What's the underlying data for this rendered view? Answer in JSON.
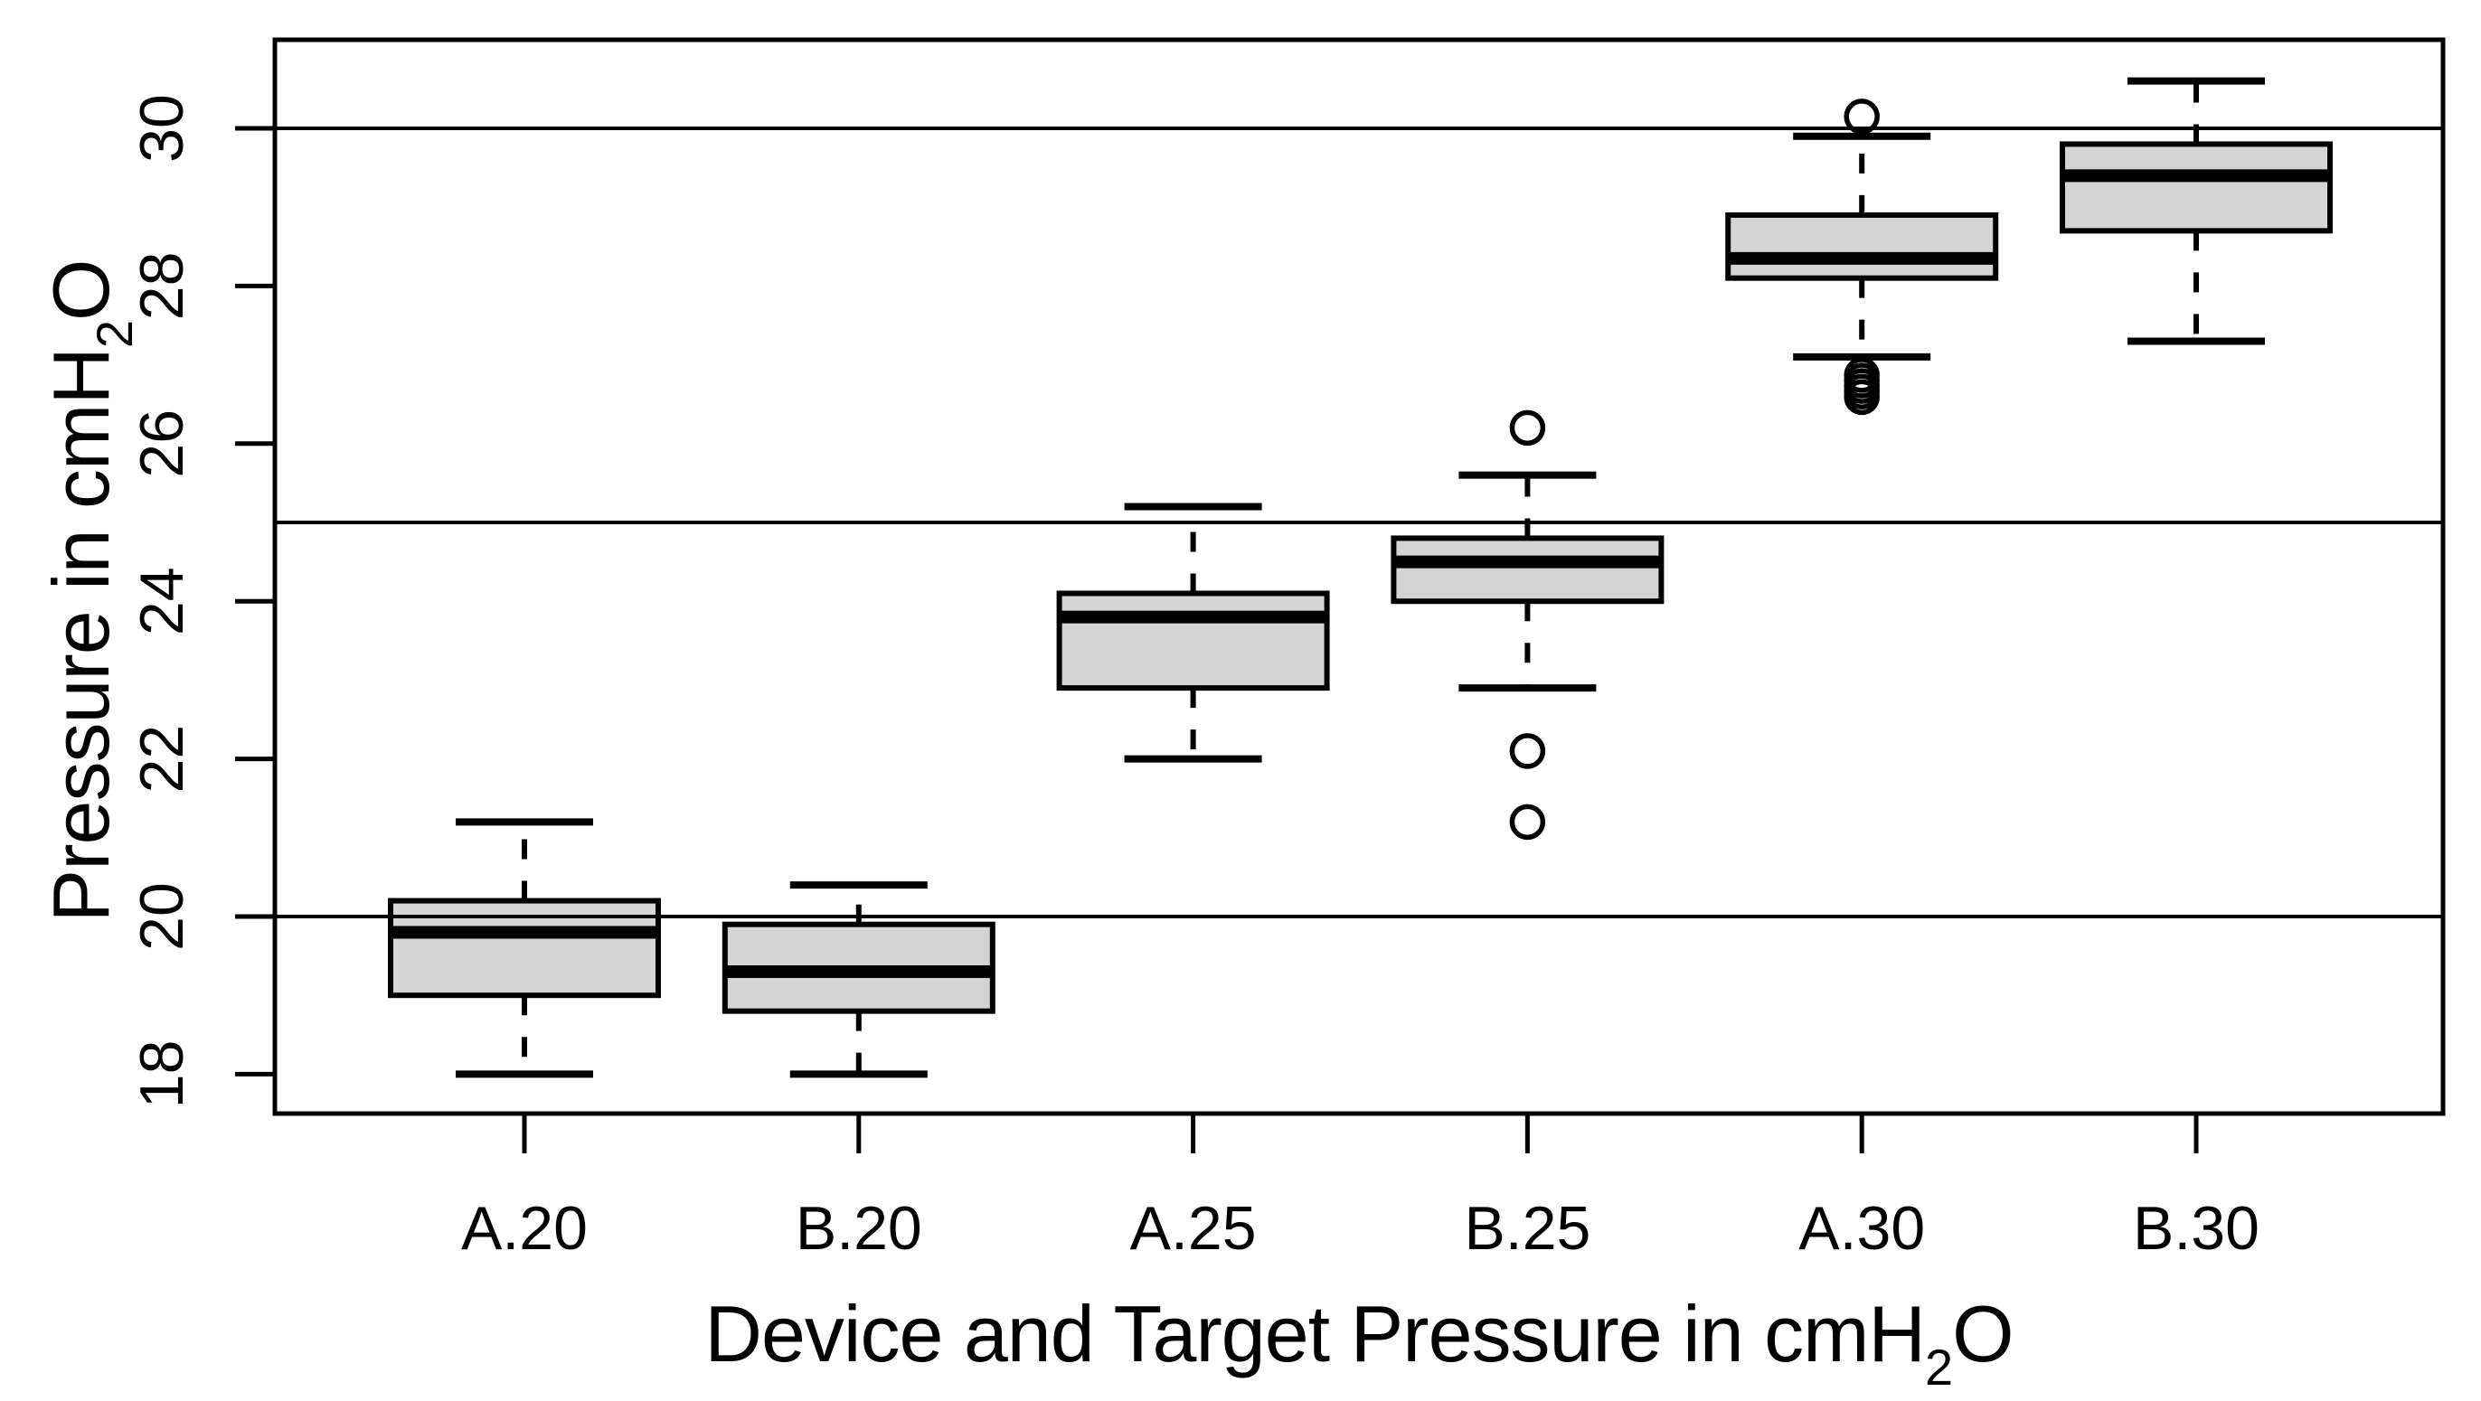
{
  "figure": {
    "description": "Boxplot figure comparing measured airway pressure for two devices (A, B) at three target pressures (20, 25, 30 cmH2O)",
    "background_color": "#ffffff",
    "foreground_color": "#000000"
  },
  "chart_data": {
    "type": "boxplot",
    "title": "",
    "xlabel": "Device and Target Pressure in cmH2O",
    "ylabel": "Pressure in cmH2O",
    "xlabel_parts": [
      {
        "t": "Device and Target Pressure in cmH",
        "sub": false
      },
      {
        "t": "2",
        "sub": true
      },
      {
        "t": "O",
        "sub": false
      }
    ],
    "ylabel_parts": [
      {
        "t": "Pressure in cmH",
        "sub": false
      },
      {
        "t": "2",
        "sub": true
      },
      {
        "t": "O",
        "sub": false
      }
    ],
    "categories": [
      "A.20",
      "B.20",
      "A.25",
      "B.25",
      "A.30",
      "B.30"
    ],
    "y_ticks": [
      18,
      20,
      22,
      24,
      26,
      28,
      30
    ],
    "ylim": [
      17.5,
      31.1
    ],
    "reference_lines": [
      20,
      25,
      30
    ],
    "grid": "horizontal reference lines at target pressures only",
    "legend": null,
    "box_fill": "#d4d4d4",
    "line_color": "#000000",
    "boxes": [
      {
        "category": "A.20",
        "whisker_low": 18.0,
        "q1": 19.0,
        "median": 19.8,
        "q3": 20.2,
        "whisker_high": 21.2,
        "outliers": []
      },
      {
        "category": "B.20",
        "whisker_low": 18.0,
        "q1": 18.8,
        "median": 19.3,
        "q3": 19.9,
        "whisker_high": 20.4,
        "outliers": []
      },
      {
        "category": "A.25",
        "whisker_low": 22.0,
        "q1": 22.9,
        "median": 23.8,
        "q3": 24.1,
        "whisker_high": 25.2,
        "outliers": []
      },
      {
        "category": "B.25",
        "whisker_low": 22.9,
        "q1": 24.0,
        "median": 24.5,
        "q3": 24.8,
        "whisker_high": 25.6,
        "outliers": [
          26.2,
          22.1,
          21.2
        ]
      },
      {
        "category": "A.30",
        "whisker_low": 27.1,
        "q1": 28.1,
        "median": 28.35,
        "q3": 28.9,
        "whisker_high": 29.9,
        "outliers": [
          30.15,
          26.87,
          26.8,
          26.73,
          26.66,
          26.59
        ]
      },
      {
        "category": "B.30",
        "whisker_low": 27.3,
        "q1": 28.7,
        "median": 29.4,
        "q3": 29.8,
        "whisker_high": 30.6,
        "outliers": []
      }
    ]
  }
}
